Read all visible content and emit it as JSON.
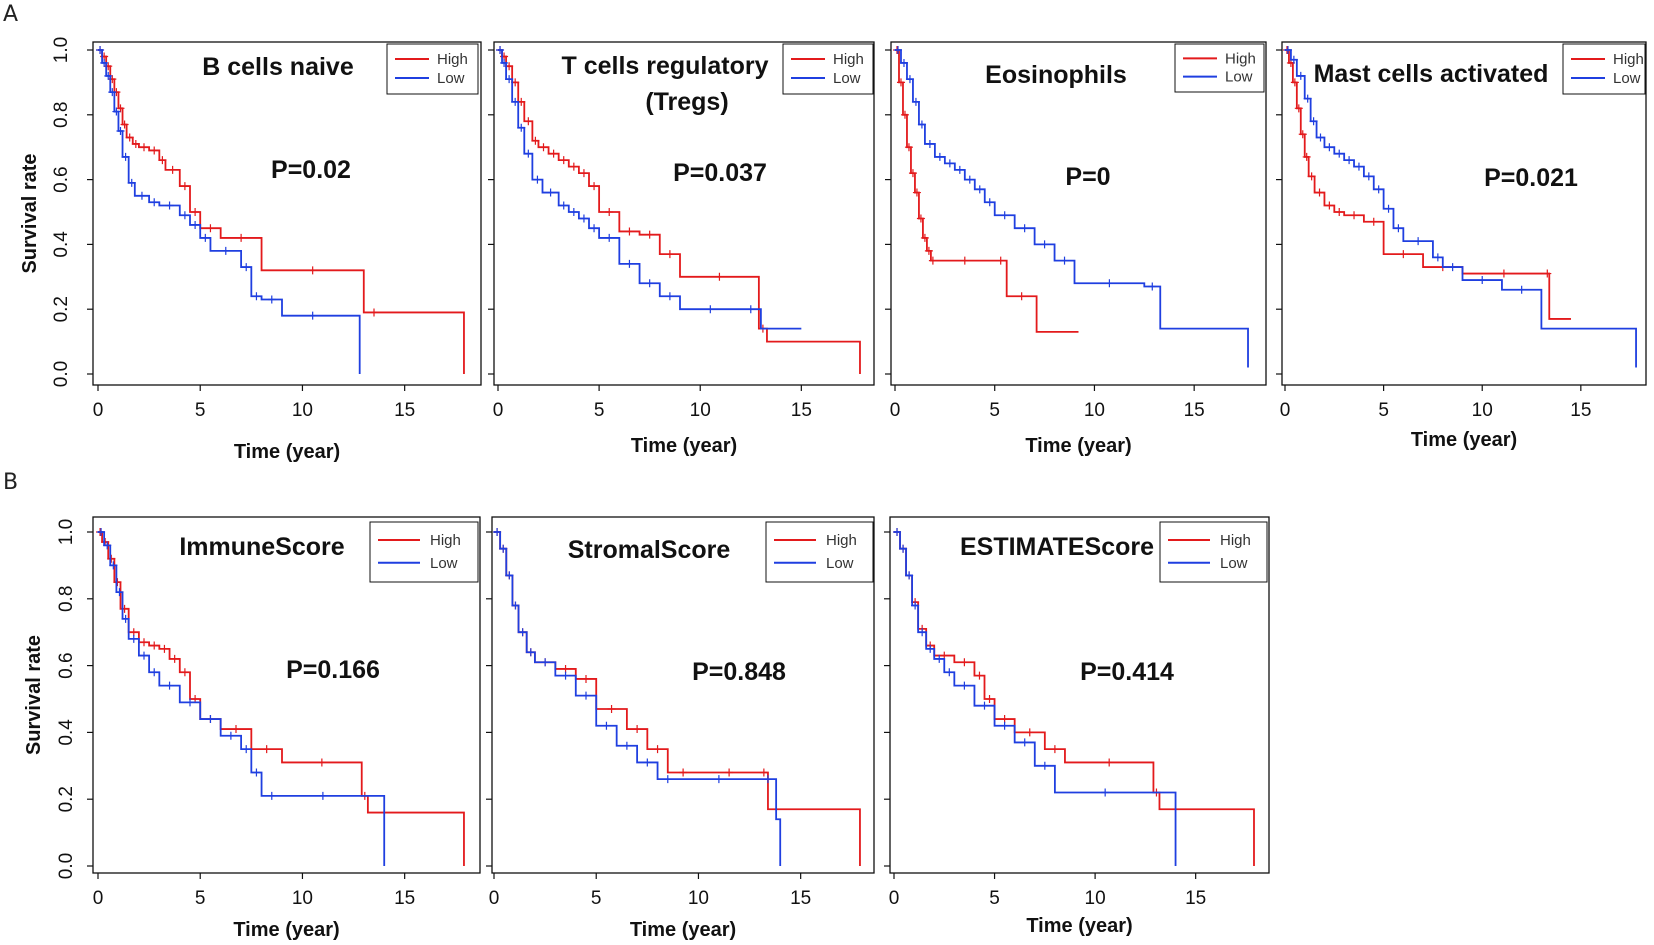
{
  "figure": {
    "row_labels": [
      "A",
      "B"
    ]
  },
  "colors": {
    "high": "#e31a1c",
    "low": "#1f3fe0",
    "frame": "#111111"
  },
  "chart_data": [
    {
      "type": "line",
      "id": "b-cells-naive",
      "row": "A",
      "title": [
        "B cells naive"
      ],
      "pvalue": "P=0.02",
      "xlabel": "Time (year)",
      "ylabel": "Survival rate",
      "xlim": [
        0,
        18
      ],
      "ylim": [
        0,
        1
      ],
      "xticks": [
        0,
        5,
        10,
        15
      ],
      "yticks": [
        0.0,
        0.2,
        0.4,
        0.6,
        0.8,
        1.0
      ],
      "ytick_labels": [
        "0.0",
        "0.2",
        "0.4",
        "0.6",
        "0.8",
        "1.0"
      ],
      "legend": [
        "High",
        "Low"
      ],
      "series": [
        {
          "name": "High",
          "color": "#e31a1c",
          "x": [
            0,
            0.2,
            0.4,
            0.6,
            0.8,
            1.0,
            1.2,
            1.4,
            1.7,
            2.0,
            2.5,
            3.0,
            3.3,
            4.0,
            4.5,
            5.0,
            6.0,
            8.0,
            13.0,
            14.0,
            17.9
          ],
          "y": [
            1.0,
            0.98,
            0.95,
            0.91,
            0.87,
            0.82,
            0.77,
            0.73,
            0.71,
            0.7,
            0.69,
            0.66,
            0.63,
            0.58,
            0.5,
            0.45,
            0.42,
            0.32,
            0.19,
            0.19,
            0.0
          ]
        },
        {
          "name": "Low",
          "color": "#1f3fe0",
          "x": [
            0,
            0.2,
            0.4,
            0.6,
            0.8,
            1.0,
            1.2,
            1.5,
            1.8,
            2.5,
            3.0,
            4.0,
            4.5,
            5.0,
            5.5,
            7.0,
            7.5,
            8.0,
            9.0,
            12.0,
            12.8
          ],
          "y": [
            1.0,
            0.96,
            0.92,
            0.87,
            0.81,
            0.75,
            0.67,
            0.59,
            0.55,
            0.53,
            0.52,
            0.49,
            0.46,
            0.42,
            0.38,
            0.33,
            0.24,
            0.23,
            0.18,
            0.18,
            0.0
          ]
        }
      ]
    },
    {
      "type": "line",
      "id": "t-cells-regulatory",
      "row": "A",
      "title": [
        "T cells regulatory",
        "(Tregs)"
      ],
      "pvalue": "P=0.037",
      "xlabel": "Time (year)",
      "ylabel": "",
      "xlim": [
        0,
        18
      ],
      "ylim": [
        0,
        1
      ],
      "xticks": [
        0,
        5,
        10,
        15
      ],
      "yticks": [
        0.0,
        0.2,
        0.4,
        0.6,
        0.8,
        1.0
      ],
      "ytick_labels": [],
      "legend": [
        "High",
        "Low"
      ],
      "series": [
        {
          "name": "High",
          "color": "#e31a1c",
          "x": [
            0,
            0.2,
            0.4,
            0.7,
            1.0,
            1.3,
            1.7,
            2.0,
            2.5,
            3.0,
            3.5,
            4.0,
            4.5,
            5.0,
            6.0,
            7.0,
            8.0,
            9.0,
            12.9,
            13.3,
            17.9
          ],
          "y": [
            1.0,
            0.98,
            0.95,
            0.9,
            0.84,
            0.78,
            0.72,
            0.7,
            0.68,
            0.66,
            0.64,
            0.62,
            0.58,
            0.5,
            0.44,
            0.43,
            0.37,
            0.3,
            0.14,
            0.1,
            0.0
          ]
        },
        {
          "name": "Low",
          "color": "#1f3fe0",
          "x": [
            0,
            0.2,
            0.4,
            0.7,
            1.0,
            1.3,
            1.7,
            2.2,
            3.0,
            3.5,
            4.0,
            4.5,
            5.0,
            6.0,
            7.0,
            8.0,
            9.0,
            12.0,
            13.0,
            15.0
          ],
          "y": [
            1.0,
            0.96,
            0.91,
            0.84,
            0.76,
            0.68,
            0.6,
            0.56,
            0.52,
            0.5,
            0.48,
            0.45,
            0.42,
            0.34,
            0.28,
            0.24,
            0.2,
            0.2,
            0.14,
            0.14
          ]
        }
      ]
    },
    {
      "type": "line",
      "id": "eosinophils",
      "row": "A",
      "title": [
        "Eosinophils"
      ],
      "pvalue": "P=0",
      "xlabel": "Time (year)",
      "ylabel": "",
      "xlim": [
        0,
        18
      ],
      "ylim": [
        0,
        1
      ],
      "xticks": [
        0,
        5,
        10,
        15
      ],
      "yticks": [
        0.0,
        0.2,
        0.4,
        0.6,
        0.8,
        1.0
      ],
      "ytick_labels": [],
      "legend": [
        "High",
        "Low"
      ],
      "series": [
        {
          "name": "High",
          "color": "#e31a1c",
          "x": [
            0,
            0.2,
            0.4,
            0.6,
            0.8,
            1.0,
            1.2,
            1.4,
            1.6,
            1.8,
            2.0,
            5.0,
            5.6,
            7.1,
            9.2
          ],
          "y": [
            1.0,
            0.9,
            0.8,
            0.7,
            0.62,
            0.56,
            0.48,
            0.42,
            0.38,
            0.35,
            0.35,
            0.35,
            0.24,
            0.13,
            0.13
          ]
        },
        {
          "name": "Low",
          "color": "#1f3fe0",
          "x": [
            0,
            0.3,
            0.6,
            0.9,
            1.2,
            1.5,
            2.0,
            2.5,
            3.0,
            3.5,
            4.0,
            4.5,
            5.0,
            6.0,
            7.0,
            8.0,
            9.0,
            12.5,
            13.3,
            17.7
          ],
          "y": [
            1.0,
            0.96,
            0.91,
            0.84,
            0.77,
            0.71,
            0.67,
            0.65,
            0.63,
            0.6,
            0.57,
            0.53,
            0.49,
            0.45,
            0.4,
            0.35,
            0.28,
            0.27,
            0.14,
            0.02
          ]
        }
      ]
    },
    {
      "type": "line",
      "id": "mast-cells-activated",
      "row": "A",
      "title": [
        "Mast cells activated"
      ],
      "pvalue": "P=0.021",
      "xlabel": "Time (year)",
      "ylabel": "",
      "xlim": [
        0,
        18
      ],
      "ylim": [
        0,
        1
      ],
      "xticks": [
        0,
        5,
        10,
        15
      ],
      "yticks": [
        0.0,
        0.2,
        0.4,
        0.6,
        0.8,
        1.0
      ],
      "ytick_labels": [],
      "legend": [
        "High",
        "Low"
      ],
      "series": [
        {
          "name": "High",
          "color": "#e31a1c",
          "x": [
            0,
            0.2,
            0.4,
            0.6,
            0.8,
            1.0,
            1.2,
            1.5,
            2.0,
            2.5,
            3.0,
            4.0,
            5.0,
            7.0,
            9.0,
            13.2,
            13.4,
            14.5
          ],
          "y": [
            1.0,
            0.96,
            0.9,
            0.82,
            0.74,
            0.67,
            0.61,
            0.56,
            0.52,
            0.5,
            0.49,
            0.47,
            0.37,
            0.33,
            0.31,
            0.31,
            0.17,
            0.17
          ]
        },
        {
          "name": "Low",
          "color": "#1f3fe0",
          "x": [
            0,
            0.3,
            0.6,
            1.0,
            1.3,
            1.6,
            2.0,
            2.5,
            3.0,
            3.5,
            4.0,
            4.5,
            5.0,
            5.5,
            6.0,
            7.5,
            8.0,
            9.0,
            11.0,
            13.0,
            17.8
          ],
          "y": [
            1.0,
            0.97,
            0.92,
            0.85,
            0.78,
            0.73,
            0.7,
            0.68,
            0.66,
            0.64,
            0.61,
            0.57,
            0.51,
            0.45,
            0.41,
            0.36,
            0.33,
            0.29,
            0.26,
            0.14,
            0.02
          ]
        }
      ]
    },
    {
      "type": "line",
      "id": "immunescore",
      "row": "B",
      "title": [
        "ImmuneScore"
      ],
      "pvalue": "P=0.166",
      "xlabel": "Time (year)",
      "ylabel": "Survival rate",
      "xlim": [
        0,
        18
      ],
      "ylim": [
        0,
        1
      ],
      "xticks": [
        0,
        5,
        10,
        15
      ],
      "yticks": [
        0.0,
        0.2,
        0.4,
        0.6,
        0.8,
        1.0
      ],
      "ytick_labels": [
        "0.0",
        "0.2",
        "0.4",
        "0.6",
        "0.8",
        "1.0"
      ],
      "legend": [
        "High",
        "Low"
      ],
      "series": [
        {
          "name": "High",
          "color": "#e31a1c",
          "x": [
            0,
            0.2,
            0.5,
            0.8,
            1.1,
            1.5,
            2.0,
            2.5,
            3.0,
            3.5,
            4.0,
            4.5,
            5.0,
            6.0,
            7.5,
            9.0,
            12.9,
            13.2,
            17.9
          ],
          "y": [
            1.0,
            0.97,
            0.92,
            0.85,
            0.77,
            0.7,
            0.67,
            0.66,
            0.65,
            0.62,
            0.58,
            0.5,
            0.44,
            0.41,
            0.35,
            0.31,
            0.21,
            0.16,
            0.0
          ]
        },
        {
          "name": "Low",
          "color": "#1f3fe0",
          "x": [
            0,
            0.3,
            0.6,
            0.9,
            1.2,
            1.5,
            2.0,
            2.5,
            3.0,
            4.0,
            5.0,
            6.0,
            7.0,
            7.5,
            8.0,
            9.0,
            13.0,
            14.0
          ],
          "y": [
            1.0,
            0.96,
            0.9,
            0.82,
            0.74,
            0.68,
            0.63,
            0.58,
            0.54,
            0.49,
            0.44,
            0.39,
            0.35,
            0.28,
            0.21,
            0.21,
            0.21,
            0.0
          ]
        }
      ]
    },
    {
      "type": "line",
      "id": "stromalscore",
      "row": "B",
      "title": [
        "StromalScore"
      ],
      "pvalue": "P=0.848",
      "xlabel": "Time (year)",
      "ylabel": "",
      "xlim": [
        0,
        18
      ],
      "ylim": [
        0,
        1
      ],
      "xticks": [
        0,
        5,
        10,
        15
      ],
      "yticks": [
        0.0,
        0.2,
        0.4,
        0.6,
        0.8,
        1.0
      ],
      "ytick_labels": [],
      "legend": [
        "High",
        "Low"
      ],
      "series": [
        {
          "name": "High",
          "color": "#e31a1c",
          "x": [
            0,
            0.3,
            0.6,
            0.9,
            1.2,
            1.6,
            2.0,
            3.0,
            4.0,
            5.0,
            6.5,
            7.5,
            8.5,
            10.0,
            13.0,
            13.4,
            17.9
          ],
          "y": [
            1.0,
            0.95,
            0.87,
            0.78,
            0.7,
            0.64,
            0.61,
            0.59,
            0.56,
            0.47,
            0.41,
            0.35,
            0.28,
            0.28,
            0.28,
            0.17,
            0.0
          ]
        },
        {
          "name": "Low",
          "color": "#1f3fe0",
          "x": [
            0,
            0.3,
            0.6,
            0.9,
            1.2,
            1.6,
            2.0,
            3.0,
            4.0,
            5.0,
            6.0,
            7.0,
            8.0,
            9.0,
            13.0,
            13.8,
            14.0
          ],
          "y": [
            1.0,
            0.95,
            0.87,
            0.78,
            0.7,
            0.64,
            0.61,
            0.57,
            0.51,
            0.42,
            0.36,
            0.31,
            0.26,
            0.26,
            0.26,
            0.14,
            0.0
          ]
        }
      ]
    },
    {
      "type": "line",
      "id": "estimatescore",
      "row": "B",
      "title": [
        "ESTIMATEScore"
      ],
      "pvalue": "P=0.414",
      "xlabel": "Time (year)",
      "ylabel": "",
      "xlim": [
        0,
        18
      ],
      "ylim": [
        0,
        1
      ],
      "xticks": [
        0,
        5,
        10,
        15
      ],
      "yticks": [
        0.0,
        0.2,
        0.4,
        0.6,
        0.8,
        1.0
      ],
      "ytick_labels": [],
      "legend": [
        "High",
        "Low"
      ],
      "series": [
        {
          "name": "High",
          "color": "#e31a1c",
          "x": [
            0,
            0.3,
            0.6,
            0.9,
            1.2,
            1.6,
            2.0,
            3.0,
            4.0,
            4.5,
            5.0,
            6.0,
            7.5,
            8.5,
            12.9,
            13.2,
            17.9
          ],
          "y": [
            1.0,
            0.95,
            0.87,
            0.79,
            0.71,
            0.66,
            0.63,
            0.61,
            0.57,
            0.5,
            0.44,
            0.4,
            0.35,
            0.31,
            0.22,
            0.17,
            0.0
          ]
        },
        {
          "name": "Low",
          "color": "#1f3fe0",
          "x": [
            0,
            0.3,
            0.6,
            0.9,
            1.2,
            1.6,
            2.0,
            2.5,
            3.0,
            4.0,
            5.0,
            6.0,
            7.0,
            8.0,
            13.0,
            14.0
          ],
          "y": [
            1.0,
            0.95,
            0.87,
            0.78,
            0.7,
            0.65,
            0.62,
            0.58,
            0.54,
            0.48,
            0.42,
            0.37,
            0.3,
            0.22,
            0.22,
            0.0
          ]
        }
      ]
    }
  ]
}
